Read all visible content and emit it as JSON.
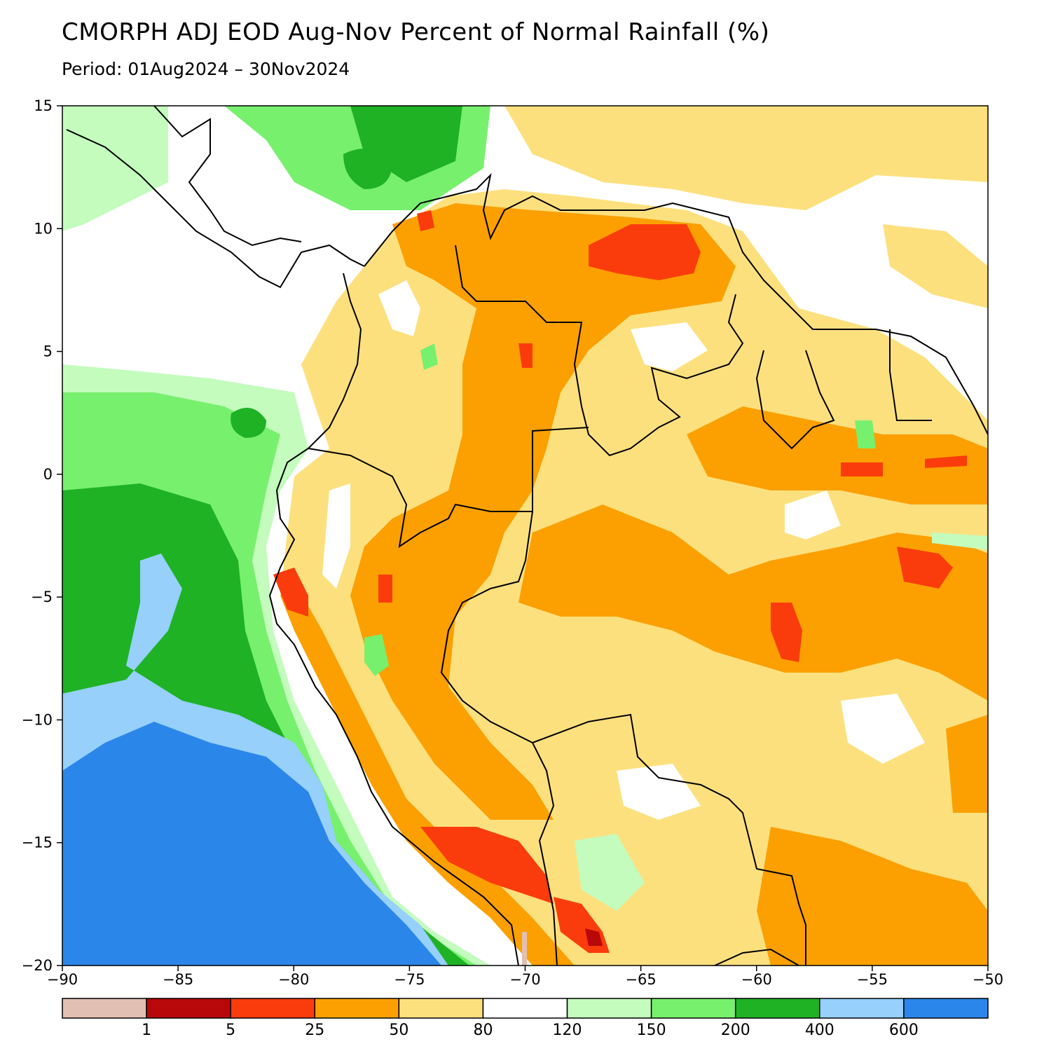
{
  "title": "CMORPH ADJ EOD Aug-Nov Percent of Normal Rainfall (%)",
  "subtitle": "Period: 01Aug2024 – 30Nov2024",
  "map": {
    "lon_range": [
      -90,
      -50
    ],
    "lat_range": [
      -20,
      15
    ],
    "lon_ticks": [
      {
        "value": -90,
        "label": "−90"
      },
      {
        "value": -85,
        "label": "−85"
      },
      {
        "value": -80,
        "label": "−80"
      },
      {
        "value": -75,
        "label": "−75"
      },
      {
        "value": -70,
        "label": "−70"
      },
      {
        "value": -65,
        "label": "−65"
      },
      {
        "value": -60,
        "label": "−60"
      },
      {
        "value": -55,
        "label": "−55"
      },
      {
        "value": -50,
        "label": "−50"
      }
    ],
    "lat_ticks": [
      {
        "value": 15,
        "label": "15"
      },
      {
        "value": 10,
        "label": "10"
      },
      {
        "value": 5,
        "label": "5"
      },
      {
        "value": 0,
        "label": "0"
      },
      {
        "value": -5,
        "label": "−5"
      },
      {
        "value": -10,
        "label": "−10"
      },
      {
        "value": -15,
        "label": "−15"
      },
      {
        "value": -20,
        "label": "−20"
      }
    ]
  },
  "legend": {
    "colors": [
      "#e1bfb2",
      "#b8080a",
      "#fa3c0c",
      "#fba000",
      "#fde07e",
      "#ffffff",
      "#c3fcbd",
      "#77f06d",
      "#1eb224",
      "#96d0fb",
      "#2b86ea"
    ],
    "labels": [
      "1",
      "5",
      "25",
      "50",
      "80",
      "120",
      "150",
      "200",
      "400",
      "600"
    ]
  }
}
